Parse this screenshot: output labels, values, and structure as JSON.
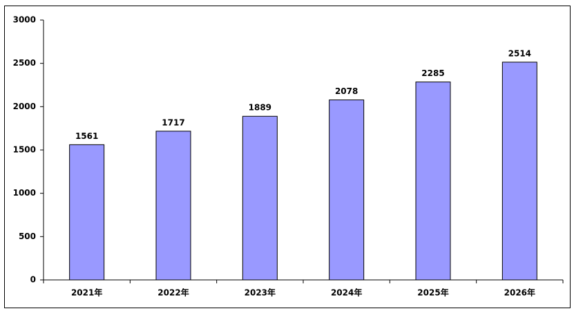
{
  "chart_data": {
    "type": "bar",
    "categories": [
      "2021年",
      "2022年",
      "2023年",
      "2024年",
      "2025年",
      "2026年"
    ],
    "values": [
      1561,
      1717,
      1889,
      2078,
      2285,
      2514
    ],
    "color": "#9999ff",
    "ylim": [
      0,
      3000
    ],
    "yticks": [
      0,
      500,
      1000,
      1500,
      2000,
      2500,
      3000
    ],
    "grid": false
  }
}
